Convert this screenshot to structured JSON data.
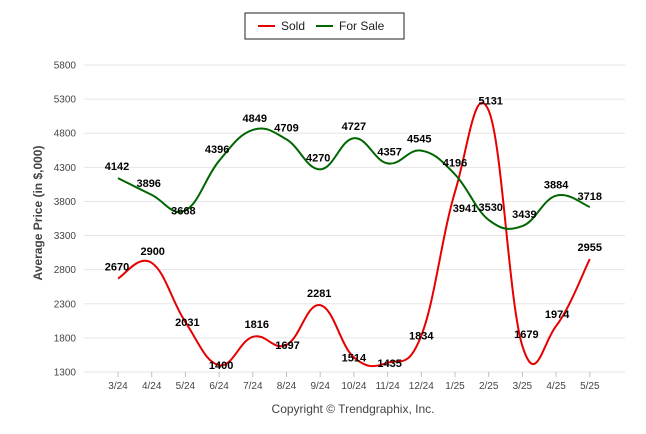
{
  "chart_data": {
    "type": "line",
    "title": "",
    "ylabel": "Average Price (in $,000)",
    "xlabel": "",
    "categories": [
      "3/24",
      "4/24",
      "5/24",
      "6/24",
      "7/24",
      "8/24",
      "9/24",
      "10/24",
      "11/24",
      "12/24",
      "1/25",
      "2/25",
      "3/25",
      "4/25",
      "5/25"
    ],
    "yticks": [
      1300,
      1800,
      2300,
      2800,
      3300,
      3800,
      4300,
      4800,
      5300,
      5800
    ],
    "ylim": [
      1300,
      5800
    ],
    "grid": true,
    "legend_position": "top-center",
    "series": [
      {
        "name": "Sold",
        "color": "#e60000",
        "values": [
          2670,
          2900,
          2031,
          1400,
          1816,
          1697,
          2281,
          1514,
          1435,
          1834,
          3941,
          5131,
          1679,
          1974,
          2955
        ]
      },
      {
        "name": "For Sale",
        "color": "#006600",
        "values": [
          4142,
          3896,
          3668,
          4396,
          4849,
          4709,
          4270,
          4727,
          4357,
          4545,
          4196,
          3530,
          3439,
          3884,
          3718
        ]
      }
    ]
  },
  "footer": {
    "copyright": "Copyright © Trendgraphix, Inc."
  }
}
